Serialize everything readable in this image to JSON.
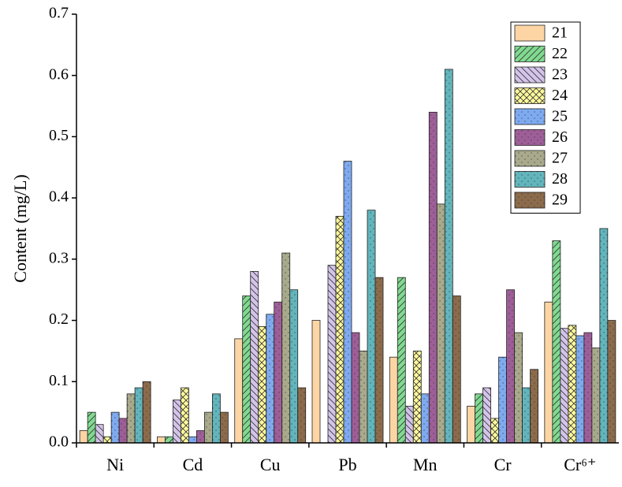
{
  "chart_data": {
    "type": "bar",
    "y_label": "Content (mg/L)",
    "categories": [
      "Ni",
      "Cd",
      "Cu",
      "Pb",
      "Mn",
      "Cr",
      "Cr⁶⁺"
    ],
    "ylim": [
      0,
      0.7
    ],
    "yticks": [
      {
        "value": 0,
        "label": "0.0"
      },
      0.1,
      0.2,
      0.3,
      0.4,
      0.5,
      0.6,
      0.7
    ],
    "series": [
      {
        "name": "21",
        "color": "#fdd5a5",
        "pattern": "none",
        "values": [
          0.02,
          0.01,
          0.17,
          0.2,
          0.14,
          0.06,
          0.23
        ]
      },
      {
        "name": "22",
        "color": "#80da90",
        "pattern": "diagonal",
        "values": [
          0.05,
          0.01,
          0.24,
          0,
          0.27,
          0.08,
          0.33
        ]
      },
      {
        "name": "23",
        "color": "#d4c4ea",
        "pattern": "back-diagonal",
        "values": [
          0.03,
          0.07,
          0.28,
          0.29,
          0.06,
          0.09,
          0.187
        ]
      },
      {
        "name": "24",
        "color": "#fffa9c",
        "pattern": "cross",
        "values": [
          0.01,
          0.09,
          0.19,
          0.37,
          0.15,
          0.04,
          0.192
        ]
      },
      {
        "name": "25",
        "color": "#7eaaf0",
        "pattern": "dots",
        "values": [
          0.05,
          0.01,
          0.21,
          0.46,
          0.08,
          0.14,
          0.175
        ]
      },
      {
        "name": "26",
        "color": "#9e5e98",
        "pattern": "dots",
        "values": [
          0.04,
          0.02,
          0.23,
          0.18,
          0.54,
          0.25,
          0.18
        ]
      },
      {
        "name": "27",
        "color": "#a9aa8c",
        "pattern": "dots",
        "values": [
          0.08,
          0.05,
          0.31,
          0.15,
          0.39,
          0.18,
          0.155
        ]
      },
      {
        "name": "28",
        "color": "#62b5bc",
        "pattern": "dots",
        "values": [
          0.09,
          0.08,
          0.25,
          0.38,
          0.61,
          0.09,
          0.35
        ]
      },
      {
        "name": "29",
        "color": "#8c6b4b",
        "pattern": "dots",
        "values": [
          0.1,
          0.05,
          0.09,
          0.27,
          0.24,
          0.12,
          0.2
        ]
      }
    ]
  }
}
